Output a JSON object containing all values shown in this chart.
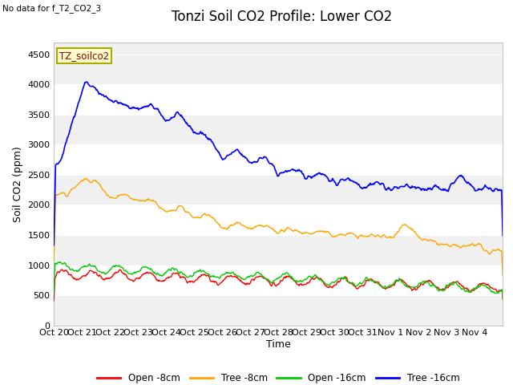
{
  "title": "Tonzi Soil CO2 Profile: Lower CO2",
  "subtitle": "No data for f_T2_CO2_3",
  "ylabel": "Soil CO2 (ppm)",
  "xlabel": "Time",
  "legend_label": "TZ_soilco2",
  "ylim": [
    0,
    4700
  ],
  "yticks": [
    0,
    500,
    1000,
    1500,
    2000,
    2500,
    3000,
    3500,
    4000,
    4500
  ],
  "xtick_labels": [
    "Oct 20",
    "Oct 21",
    "Oct 22",
    "Oct 23",
    "Oct 24",
    "Oct 25",
    "Oct 26",
    "Oct 27",
    "Oct 28",
    "Oct 29",
    "Oct 30",
    "Oct 31",
    "Nov 1",
    "Nov 2",
    "Nov 3",
    "Nov 4"
  ],
  "colors": {
    "open_8cm": "#ff0000",
    "tree_8cm": "#ffa500",
    "open_16cm": "#00cc00",
    "tree_16cm": "#0000ff"
  },
  "legend_entries": [
    "Open -8cm",
    "Tree -8cm",
    "Open -16cm",
    "Tree -16cm"
  ],
  "fig_bg_color": "#ffffff",
  "plot_bg_light": "#f0f0f0",
  "plot_bg_dark": "#e0e0e0",
  "title_fontsize": 12,
  "label_fontsize": 9,
  "tick_fontsize": 8
}
